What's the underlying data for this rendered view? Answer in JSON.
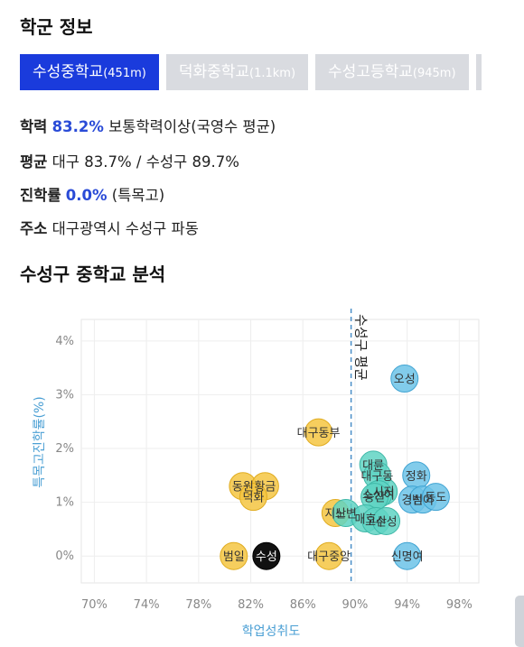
{
  "section1_title": "학군 정보",
  "tabs": [
    {
      "name": "수성중학교",
      "dist": "(451m)",
      "active": true
    },
    {
      "name": "덕화중학교",
      "dist": "(1.1km)",
      "active": false
    },
    {
      "name": "수성고등학교",
      "dist": "(945m)",
      "active": false
    }
  ],
  "info": {
    "academic": {
      "label": "학력",
      "value": "83.2%",
      "suffix": " 보통학력이상(국영수 평균)"
    },
    "average": {
      "label": "평균",
      "text": " 대구 83.7% / 수성구 89.7%"
    },
    "advance": {
      "label": "진학률",
      "value": "0.0%",
      "suffix": " (특목고)"
    },
    "address": {
      "label": "주소",
      "text": " 대구광역시 수성구 파동"
    }
  },
  "section2_title": "수성구 중학교 분석",
  "colors": {
    "accent": "#1a3bdc",
    "yellow": "#f5c542",
    "teal": "#5fd3c3",
    "blue": "#6cc3e8",
    "axis_label": "#4a9fd4",
    "avg_line": "#4a8fc8"
  },
  "chart_data": {
    "type": "scatter",
    "xlabel": "학업성취도",
    "ylabel": "특목고진학률(%)",
    "xlim": [
      69,
      99.5
    ],
    "ylim": [
      -0.5,
      4.4
    ],
    "xticks": [
      "70%",
      "74%",
      "78%",
      "82%",
      "86%",
      "90%",
      "94%",
      "98%"
    ],
    "xtick_values": [
      70,
      74,
      78,
      82,
      86,
      90,
      94,
      98
    ],
    "yticks": [
      "0%",
      "1%",
      "2%",
      "3%",
      "4%"
    ],
    "ytick_values": [
      0,
      1,
      2,
      3,
      4
    ],
    "grid": true,
    "avg_line": {
      "x": 89.7,
      "label": "수성구 평균"
    },
    "points": [
      {
        "label": "오성",
        "x": 93.8,
        "y": 3.3,
        "color": "blue"
      },
      {
        "label": "대구동부",
        "x": 87.2,
        "y": 2.3,
        "color": "yellow"
      },
      {
        "label": "대륜",
        "x": 91.4,
        "y": 1.7,
        "color": "teal"
      },
      {
        "label": "대구동",
        "x": 91.7,
        "y": 1.5,
        "color": "teal"
      },
      {
        "label": "정화",
        "x": 94.7,
        "y": 1.5,
        "color": "blue"
      },
      {
        "label": "동원",
        "x": 81.4,
        "y": 1.3,
        "color": "yellow"
      },
      {
        "label": "황금",
        "x": 83.1,
        "y": 1.3,
        "color": "yellow"
      },
      {
        "label": "덕화",
        "x": 82.2,
        "y": 1.1,
        "color": "yellow"
      },
      {
        "label": "시지",
        "x": 92.2,
        "y": 1.2,
        "color": "teal"
      },
      {
        "label": "소선여",
        "x": 91.8,
        "y": 1.15,
        "color": "teal"
      },
      {
        "label": "능산",
        "x": 91.5,
        "y": 1.1,
        "color": "teal"
      },
      {
        "label": "경신",
        "x": 94.4,
        "y": 1.05,
        "color": "blue"
      },
      {
        "label": "범어",
        "x": 95.2,
        "y": 1.05,
        "color": "blue"
      },
      {
        "label": "동도",
        "x": 96.2,
        "y": 1.1,
        "color": "blue"
      },
      {
        "label": "지산",
        "x": 88.5,
        "y": 0.8,
        "color": "yellow"
      },
      {
        "label": "노변",
        "x": 89.3,
        "y": 0.8,
        "color": "teal"
      },
      {
        "label": "매호",
        "x": 90.8,
        "y": 0.7,
        "color": "teal"
      },
      {
        "label": "고산",
        "x": 91.6,
        "y": 0.65,
        "color": "teal"
      },
      {
        "label": "수성",
        "x": 92.4,
        "y": 0.65,
        "color": "teal"
      },
      {
        "label": "범일",
        "x": 80.7,
        "y": 0.0,
        "color": "yellow"
      },
      {
        "label": "수성",
        "x": 83.2,
        "y": 0.0,
        "color": "black"
      },
      {
        "label": "대구중앙",
        "x": 88.0,
        "y": 0.0,
        "color": "yellow"
      },
      {
        "label": "신명여",
        "x": 94.0,
        "y": 0.0,
        "color": "blue"
      }
    ]
  }
}
